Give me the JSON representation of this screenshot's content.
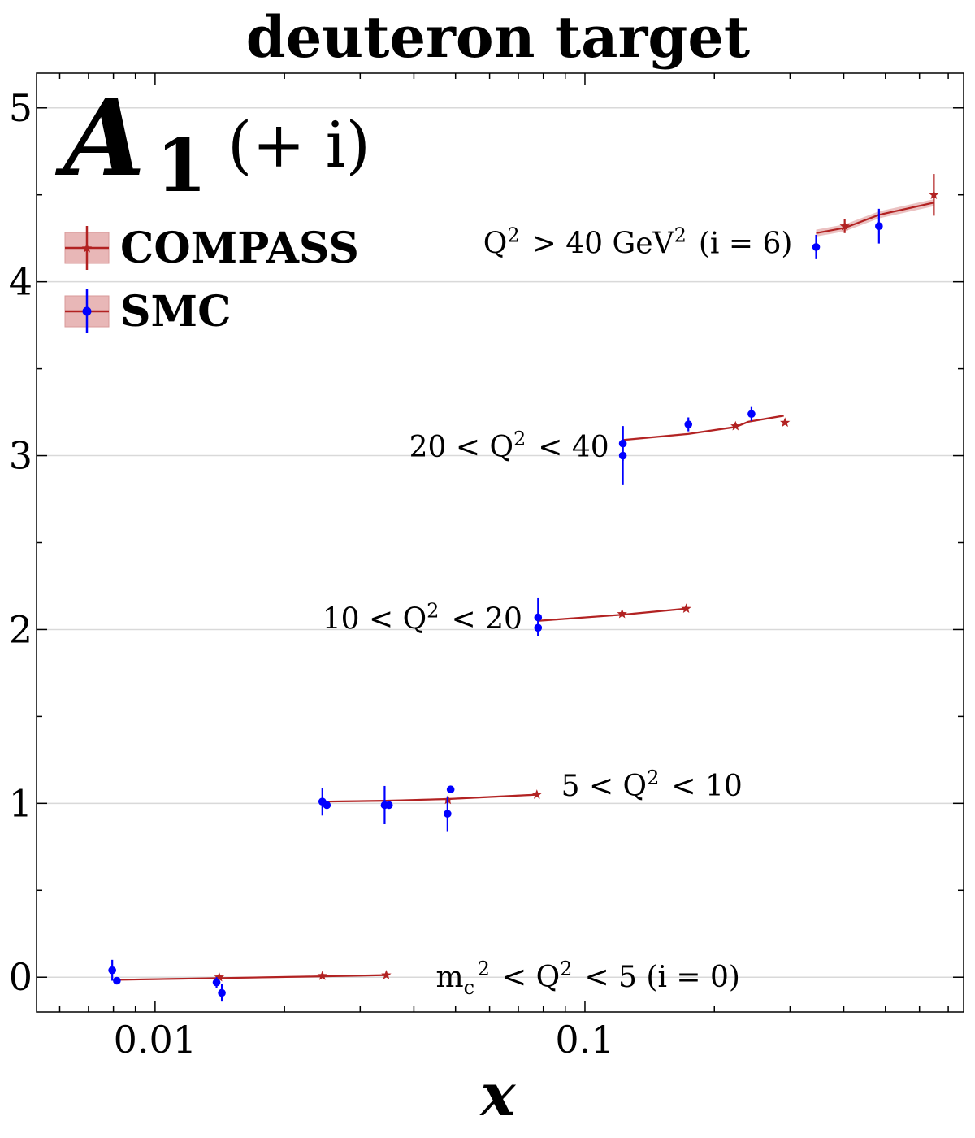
{
  "chart_data": {
    "type": "scatter",
    "title": "deuteron target",
    "xlabel": "x",
    "ylabel": "",
    "xscale": "log",
    "xlim": [
      0.0053,
      0.76
    ],
    "ylim": [
      -0.2,
      5.2
    ],
    "x_ticks": [
      0.01,
      0.1
    ],
    "x_tick_labels": [
      "0.01",
      "0.1"
    ],
    "y_ticks": [
      0,
      1,
      2,
      3,
      4,
      5
    ],
    "y_tick_labels": [
      "0",
      "1",
      "2",
      "3",
      "4",
      "5"
    ],
    "grid": "horizontal lines at integer y",
    "quantity": {
      "main": "A",
      "sub": "1",
      "offset": "(+ i)"
    },
    "legend": {
      "placement": "upper-left",
      "entries": [
        "COMPASS",
        "SMC"
      ]
    },
    "colors": {
      "compass": "#b22222",
      "smc": "#0000ff",
      "band": "#e8b7b7",
      "grid": "#d9d9d9"
    },
    "series": [
      {
        "name": "COMPASS",
        "marker": "star",
        "points": [
          {
            "x": 0.0141,
            "y": 0.0,
            "err": 0.01
          },
          {
            "x": 0.0245,
            "y": 0.008,
            "err": 0.01
          },
          {
            "x": 0.0345,
            "y": 0.012,
            "err": 0.01
          },
          {
            "x": 0.048,
            "y": 1.02,
            "err": 0.01
          },
          {
            "x": 0.0773,
            "y": 1.05,
            "err": 0.01
          },
          {
            "x": 0.122,
            "y": 2.09,
            "err": 0.01
          },
          {
            "x": 0.172,
            "y": 2.12,
            "err": 0.01
          },
          {
            "x": 0.224,
            "y": 3.17,
            "err": 0.01
          },
          {
            "x": 0.292,
            "y": 3.19,
            "err": 0.01
          },
          {
            "x": 0.402,
            "y": 4.32,
            "err": 0.04
          },
          {
            "x": 0.648,
            "y": 4.5,
            "err": 0.12
          }
        ]
      },
      {
        "name": "SMC",
        "marker": "circle",
        "points": [
          {
            "x": 0.00795,
            "y": 0.04,
            "err": 0.06
          },
          {
            "x": 0.00815,
            "y": -0.02,
            "err": 0.01
          },
          {
            "x": 0.0139,
            "y": -0.03,
            "err": 0.03
          },
          {
            "x": 0.0143,
            "y": -0.09,
            "err": 0.05
          },
          {
            "x": 0.0245,
            "y": 1.01,
            "err": 0.08
          },
          {
            "x": 0.0251,
            "y": 0.99,
            "err": 0.01
          },
          {
            "x": 0.0342,
            "y": 0.99,
            "err": 0.11
          },
          {
            "x": 0.035,
            "y": 0.99,
            "err": 0.01
          },
          {
            "x": 0.0479,
            "y": 0.94,
            "err": 0.1
          },
          {
            "x": 0.0487,
            "y": 1.08,
            "err": 0.01
          },
          {
            "x": 0.0778,
            "y": 2.07,
            "err": 0.11
          },
          {
            "x": 0.0778,
            "y": 2.01,
            "err": 0.05
          },
          {
            "x": 0.1225,
            "y": 3.07,
            "err": 0.1
          },
          {
            "x": 0.1225,
            "y": 3.0,
            "err": 0.17
          },
          {
            "x": 0.174,
            "y": 3.18,
            "err": 0.04
          },
          {
            "x": 0.244,
            "y": 3.24,
            "err": 0.04
          },
          {
            "x": 0.345,
            "y": 4.2,
            "err": 0.07
          },
          {
            "x": 0.483,
            "y": 4.32,
            "err": 0.1
          }
        ]
      }
    ],
    "fit_curves": [
      {
        "bin": 0,
        "x": [
          0.0081,
          0.0141,
          0.0245,
          0.0345
        ],
        "y": [
          -0.015,
          -0.005,
          0.005,
          0.012
        ],
        "band": 0.005
      },
      {
        "bin": 1,
        "x": [
          0.0245,
          0.0345,
          0.048,
          0.0773
        ],
        "y": [
          1.01,
          1.015,
          1.025,
          1.05
        ],
        "band": 0.005
      },
      {
        "bin": 2,
        "x": [
          0.0778,
          0.122,
          0.172
        ],
        "y": [
          2.05,
          2.085,
          2.12
        ],
        "band": 0.005
      },
      {
        "bin": 3,
        "x": [
          0.1225,
          0.174,
          0.224,
          0.24,
          0.29
        ],
        "y": [
          3.09,
          3.125,
          3.165,
          3.195,
          3.23
        ],
        "band": 0.006
      },
      {
        "bin": 4,
        "x": [
          0.345,
          0.402,
          0.483,
          0.648
        ],
        "y": [
          4.28,
          4.31,
          4.385,
          4.455
        ],
        "band": 0.02
      }
    ],
    "annotations": [
      {
        "text": "m_c^2 < Q^2 < 5 (i = 0)",
        "x": 0.045,
        "y": 0.0
      },
      {
        "text": "5 < Q^2 < 10",
        "x": 0.088,
        "y": 1.1
      },
      {
        "text": "10 < Q^2 < 20",
        "x": 0.0245,
        "y": 2.06
      },
      {
        "text": "20 < Q^2 < 40",
        "x": 0.039,
        "y": 3.05
      },
      {
        "text": "Q^2 > 40 GeV^2 (i = 6)",
        "x": 0.058,
        "y": 4.22
      }
    ]
  }
}
